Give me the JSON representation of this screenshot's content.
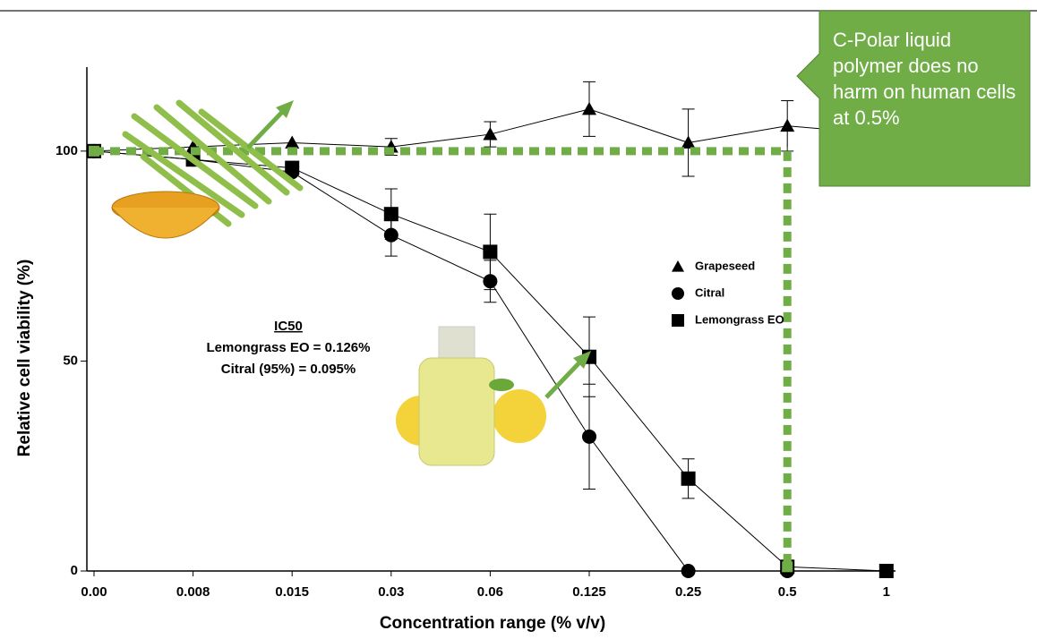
{
  "chart_data": {
    "type": "line",
    "x_label": "Concentration range (% v/v)",
    "y_label": "Relative cell viability (%)",
    "categories": [
      "0.00",
      "0.008",
      "0.015",
      "0.03",
      "0.06",
      "0.125",
      "0.25",
      "0.5",
      "1"
    ],
    "ylim": [
      0,
      120
    ],
    "yticks": [
      0,
      50,
      100
    ],
    "series": [
      {
        "name": "Grapeseed",
        "marker": "triangle",
        "color": "#000000",
        "values": [
          100,
          101,
          102,
          101,
          104,
          110,
          102,
          106,
          104
        ],
        "errors": [
          null,
          null,
          null,
          2,
          3,
          6.5,
          8,
          6,
          null
        ]
      },
      {
        "name": "Citral",
        "marker": "circle",
        "color": "#000000",
        "values": [
          100,
          98,
          95,
          80,
          69,
          32,
          0,
          0,
          0
        ],
        "errors": [
          null,
          null,
          null,
          5,
          5,
          12.5,
          null,
          null,
          null
        ]
      },
      {
        "name": "Lemongrass EO",
        "marker": "square",
        "color": "#000000",
        "values": [
          100,
          98,
          96,
          85,
          76,
          51,
          22,
          1,
          0
        ],
        "errors": [
          null,
          null,
          null,
          6,
          9,
          9.5,
          4.7,
          null,
          null
        ]
      }
    ],
    "annotations": {
      "ic50_title": "IC50",
      "ic50_lemongrass": "Lemongrass EO = 0.126%",
      "ic50_citral": "Citral (95%) = 0.095%"
    },
    "callout": "C-Polar liquid polymer does no harm on human cells at 0.5%",
    "highlight": {
      "category_index": 7,
      "value": 100,
      "color": "#70ad47"
    }
  }
}
